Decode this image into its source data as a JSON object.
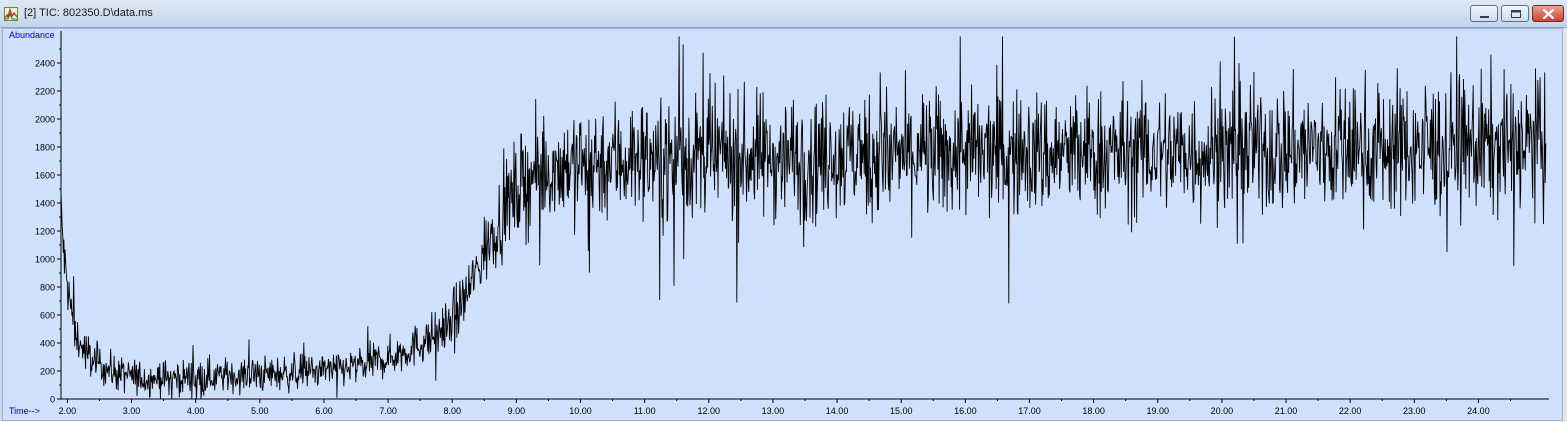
{
  "window": {
    "title": "[2] TIC: 802350.D\\data.ms",
    "icon": "spectrum-app-icon",
    "controls": {
      "minimize": "minimize-icon",
      "maximize": "maximize-icon",
      "close": "close-icon"
    }
  },
  "chart_data": {
    "type": "line",
    "title": "",
    "ylabel": "Abundance",
    "xlabel": "Time-->",
    "xlim": [
      1.9,
      25.1
    ],
    "ylim": [
      0,
      2600
    ],
    "x_ticks": [
      "2.00",
      "3.00",
      "4.00",
      "5.00",
      "6.00",
      "7.00",
      "8.00",
      "9.00",
      "10.00",
      "11.00",
      "12.00",
      "13.00",
      "14.00",
      "15.00",
      "16.00",
      "17.00",
      "18.00",
      "19.00",
      "20.00",
      "21.00",
      "22.00",
      "23.00",
      "24.00"
    ],
    "y_ticks": [
      "0",
      "200",
      "400",
      "600",
      "800",
      "1000",
      "1200",
      "1400",
      "1600",
      "1800",
      "2000",
      "2200",
      "2400"
    ],
    "grid": false,
    "legend": "none",
    "line_color": "#000000",
    "background_color": "#cfe0fd",
    "axis_label_color": "#0000cc",
    "series": [
      {
        "x": [
          1.9,
          1.95,
          2.0,
          2.1,
          2.2,
          2.4,
          2.6,
          2.8,
          3.0,
          3.2,
          3.5,
          3.8,
          4.0,
          4.5,
          5.0,
          5.5,
          6.0,
          6.5,
          7.0,
          7.3,
          7.6,
          7.9,
          8.1,
          8.3,
          8.5,
          8.7,
          8.9,
          9.1,
          9.3,
          9.6,
          10.0,
          10.5,
          11.0,
          11.5,
          12.0,
          13.0,
          14.0,
          15.0,
          16.0,
          17.0,
          18.0,
          19.0,
          20.0,
          21.0,
          22.0,
          23.0,
          24.0,
          25.05
        ],
        "y": [
          1350,
          1000,
          800,
          520,
          380,
          280,
          220,
          180,
          160,
          150,
          150,
          155,
          160,
          165,
          175,
          185,
          200,
          230,
          290,
          350,
          420,
          520,
          640,
          820,
          1050,
          1250,
          1420,
          1540,
          1610,
          1660,
          1690,
          1710,
          1720,
          1720,
          1725,
          1730,
          1735,
          1740,
          1745,
          1750,
          1755,
          1760,
          1770,
          1780,
          1790,
          1800,
          1810,
          1820
        ],
        "noise_amplitude": [
          250,
          220,
          200,
          180,
          160,
          150,
          140,
          140,
          140,
          140,
          140,
          140,
          140,
          140,
          140,
          140,
          140,
          140,
          150,
          160,
          170,
          190,
          210,
          240,
          280,
          320,
          360,
          400,
          420,
          440,
          460,
          470,
          480,
          490,
          490,
          490,
          490,
          495,
          500,
          500,
          500,
          500,
          505,
          510,
          520,
          530,
          540,
          550
        ]
      }
    ]
  }
}
